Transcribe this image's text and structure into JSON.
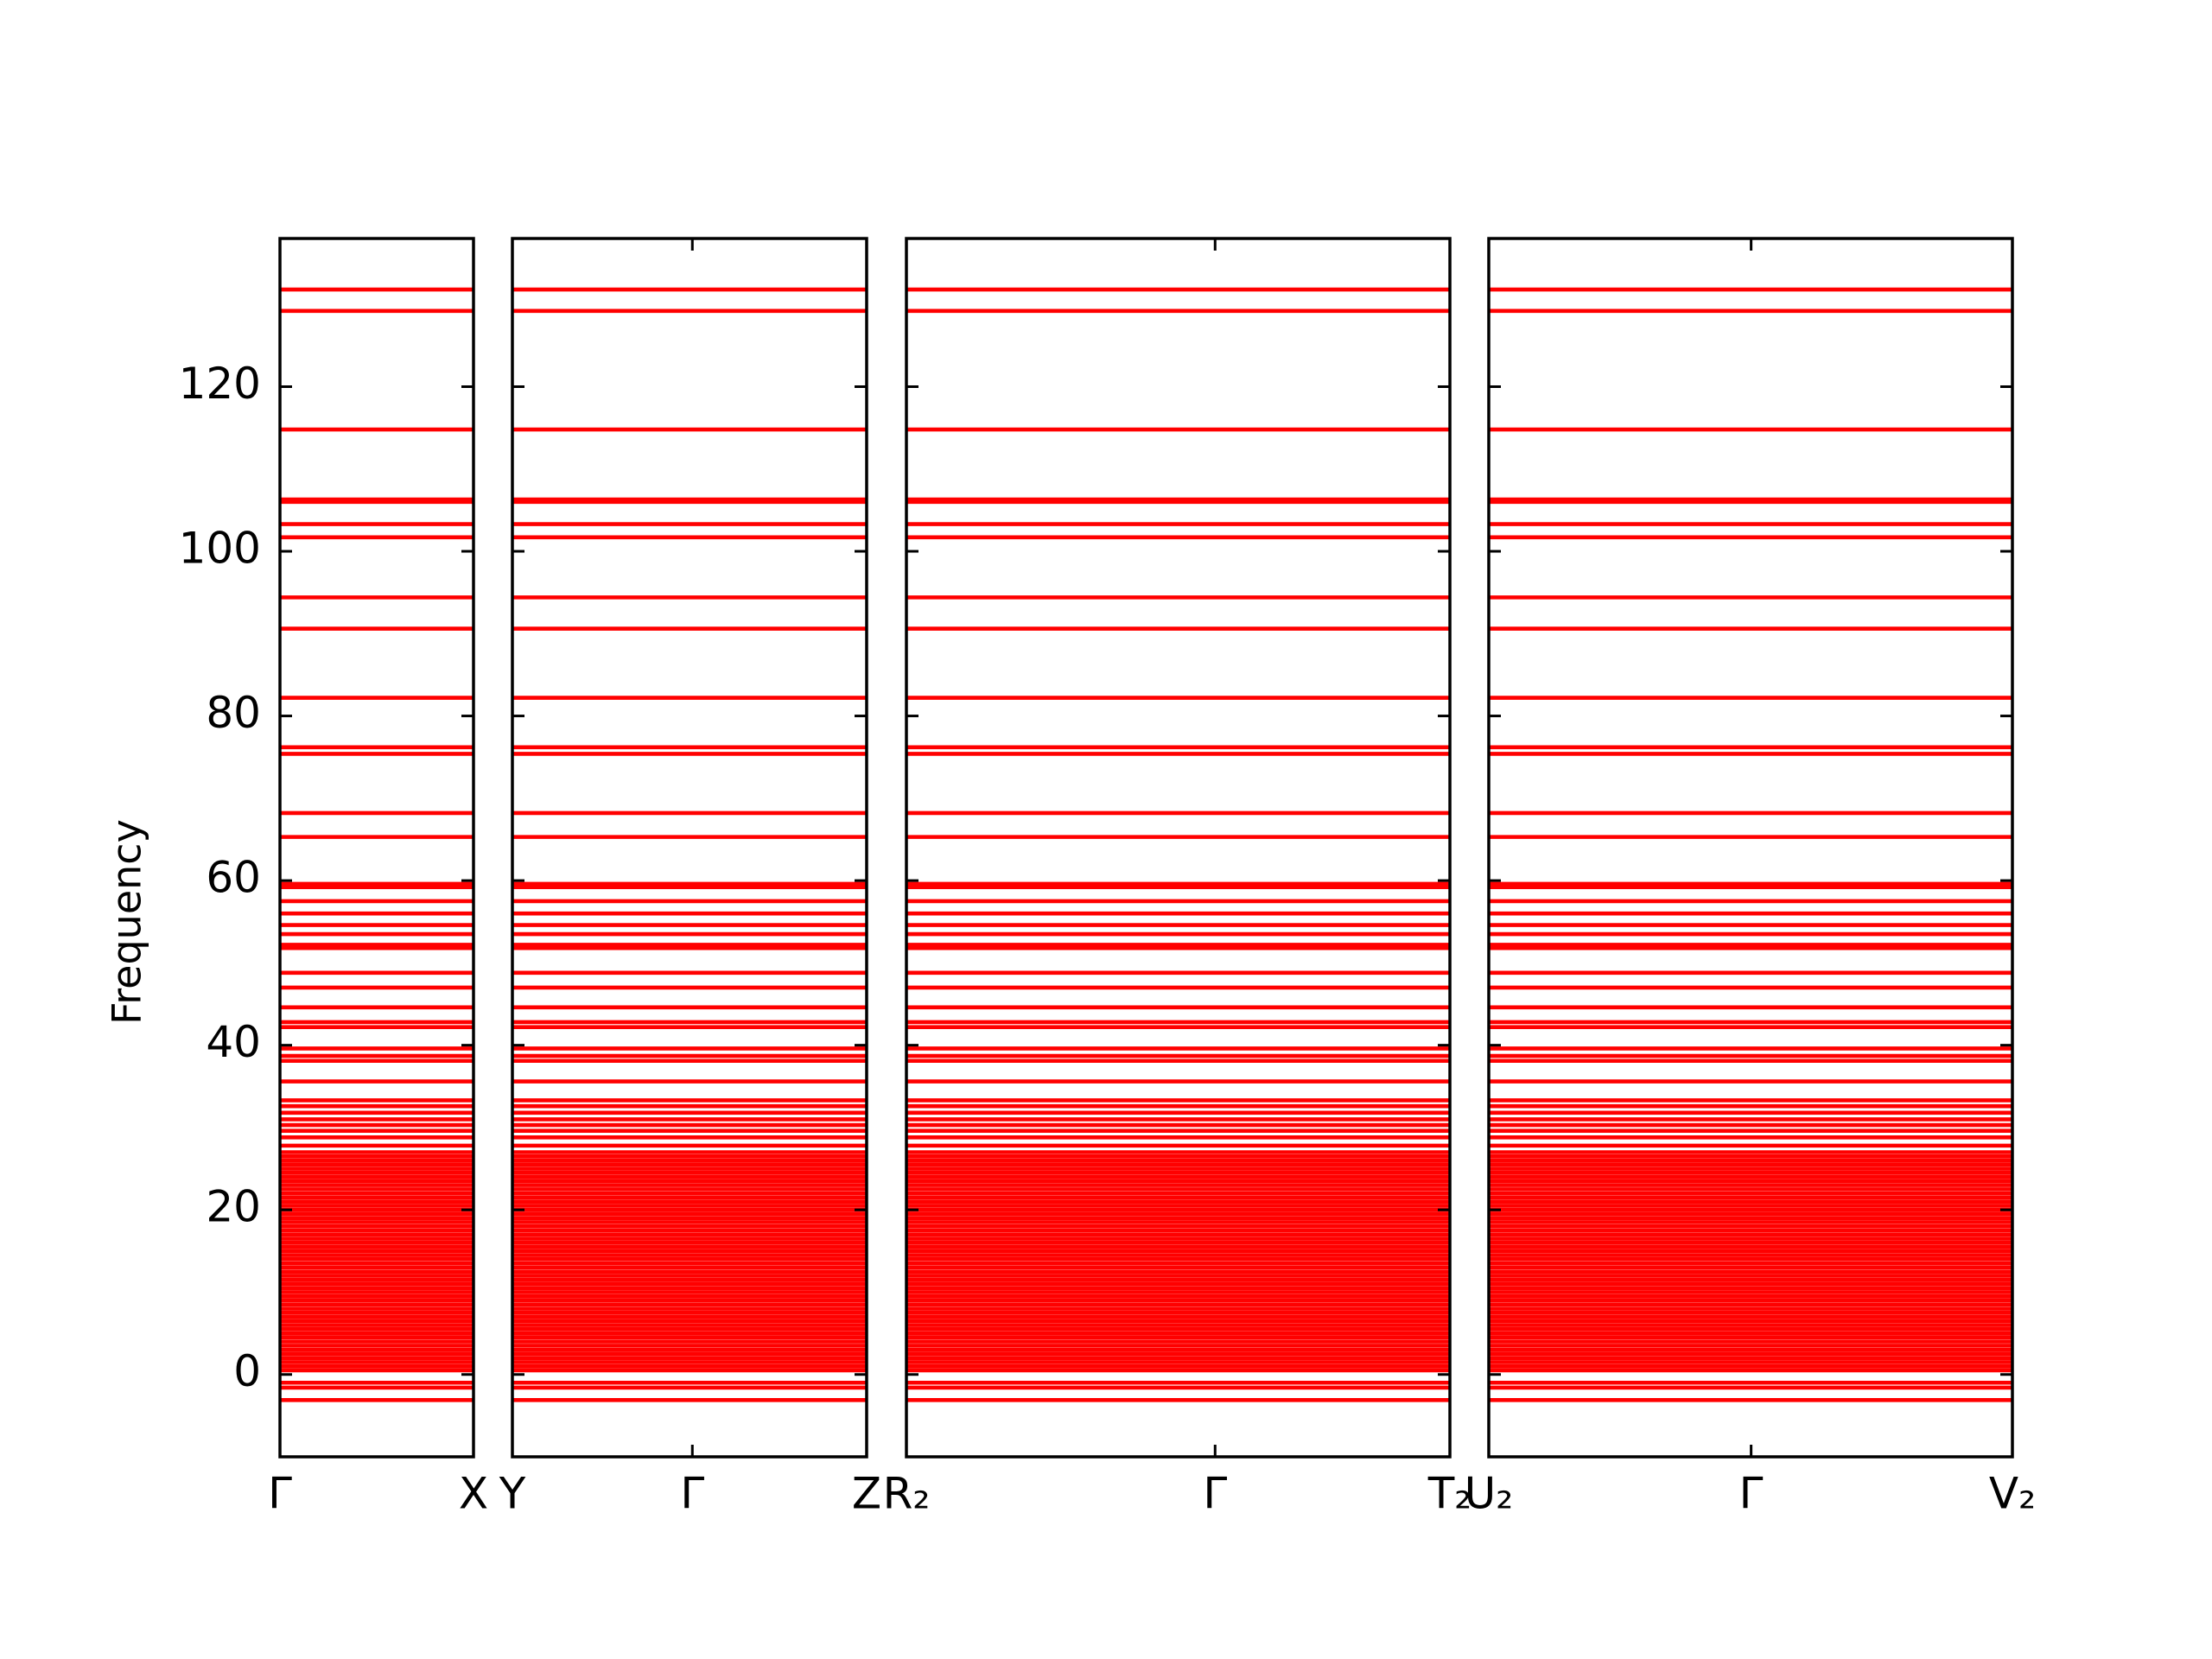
{
  "chart_data": {
    "type": "line",
    "ylabel": "Frequency",
    "ylim": [
      -10,
      138
    ],
    "yticks": [
      0,
      20,
      40,
      60,
      80,
      100,
      120
    ],
    "color": "#ff0000",
    "panels": [
      {
        "xlim": [
          0,
          1
        ],
        "xticks": [
          {
            "value": 0,
            "label": "Γ"
          },
          {
            "value": 1,
            "label": "X"
          }
        ]
      },
      {
        "xlim": [
          0,
          1
        ],
        "xticks": [
          {
            "value": 0,
            "label": "Y"
          },
          {
            "value": 0.508,
            "label": "Γ"
          },
          {
            "value": 1,
            "label": "Z"
          }
        ]
      },
      {
        "xlim": [
          0,
          1
        ],
        "xticks": [
          {
            "value": 0,
            "label": "R₂"
          },
          {
            "value": 0.568,
            "label": "Γ"
          },
          {
            "value": 1,
            "label": "T₂"
          }
        ]
      },
      {
        "xlim": [
          0,
          1
        ],
        "xticks": [
          {
            "value": 0,
            "label": "U₂"
          },
          {
            "value": 0.501,
            "label": "Γ"
          },
          {
            "value": 1,
            "label": "V₂"
          }
        ]
      }
    ],
    "bands": [
      131.8,
      129.2,
      114.8,
      106.3,
      106.0,
      103.3,
      101.7,
      94.4,
      90.6,
      82.2,
      76.2,
      75.4,
      68.2,
      65.3,
      59.6,
      59.2,
      57.5,
      56.0,
      54.6,
      53.5,
      52.2,
      51.8,
      48.8,
      47.0,
      44.6,
      42.8,
      42.2,
      39.6,
      38.7,
      38.1,
      35.6,
      33.3,
      32.6,
      31.8,
      31.0,
      30.3,
      29.6,
      28.8,
      27.8,
      27.0,
      26.5,
      26.0,
      25.5,
      25.0,
      24.5,
      24.0,
      23.5,
      23.0,
      22.5,
      22.0,
      21.5,
      21.0,
      20.5,
      20.0,
      19.5,
      19.0,
      18.5,
      18.0,
      17.5,
      17.0,
      16.5,
      16.0,
      15.5,
      15.0,
      14.5,
      14.0,
      13.5,
      13.0,
      12.5,
      12.0,
      11.5,
      11.0,
      10.5,
      10.0,
      9.5,
      9.0,
      8.5,
      8.0,
      7.5,
      7.0,
      6.5,
      6.0,
      5.5,
      5.0,
      4.5,
      4.0,
      3.5,
      3.0,
      2.5,
      2.0,
      1.5,
      1.0,
      0.5,
      -1.0,
      -1.6,
      -3.1
    ]
  }
}
